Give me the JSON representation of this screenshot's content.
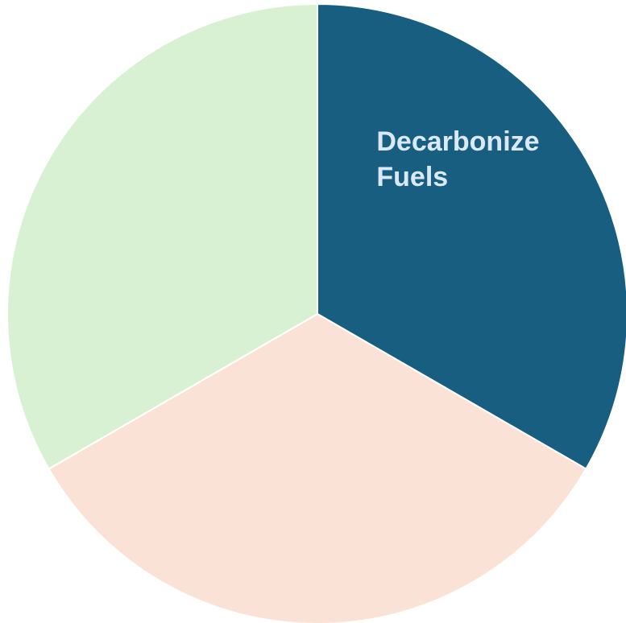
{
  "chart_data": {
    "type": "pie",
    "categories": [
      "Decarbonize Fuels",
      null,
      null
    ],
    "values": [
      33.3,
      33.3,
      33.3
    ],
    "colors": [
      "#175e80",
      "#fae3d6",
      "#d9f1d3"
    ],
    "label_color": "#dbe9f6"
  }
}
